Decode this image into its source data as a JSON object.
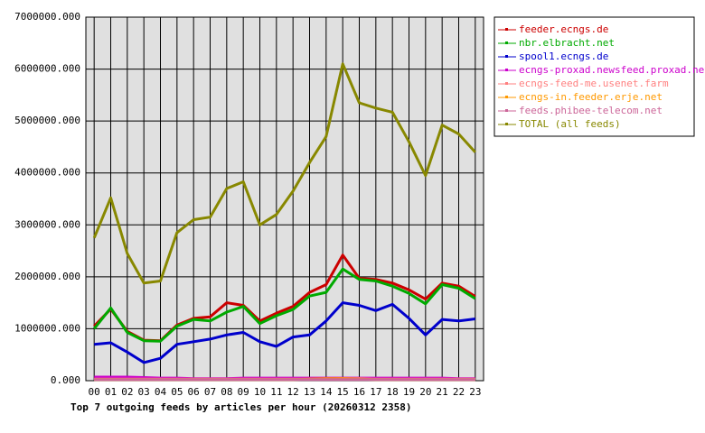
{
  "chart_data": {
    "type": "line",
    "caption": "Top 7 outgoing feeds by articles per hour (20260312 2358)",
    "categories": [
      "00",
      "01",
      "02",
      "03",
      "04",
      "05",
      "06",
      "07",
      "08",
      "09",
      "10",
      "11",
      "12",
      "13",
      "14",
      "15",
      "16",
      "17",
      "18",
      "19",
      "20",
      "21",
      "22",
      "23"
    ],
    "ylim": [
      0,
      7000000
    ],
    "yticks": [
      {
        "value": 0,
        "label": "0.000"
      },
      {
        "value": 1000000,
        "label": "1000000.000"
      },
      {
        "value": 2000000,
        "label": "2000000.000"
      },
      {
        "value": 3000000,
        "label": "3000000.000"
      },
      {
        "value": 4000000,
        "label": "4000000.000"
      },
      {
        "value": 5000000,
        "label": "5000000.000"
      },
      {
        "value": 6000000,
        "label": "6000000.000"
      },
      {
        "value": 7000000,
        "label": "7000000.000"
      }
    ],
    "grid": true,
    "series": [
      {
        "name": "feeder.ecngs.de",
        "color": "#cc0000",
        "values": [
          1050000,
          1380000,
          950000,
          780000,
          770000,
          1070000,
          1200000,
          1230000,
          1500000,
          1450000,
          1150000,
          1300000,
          1430000,
          1700000,
          1850000,
          2420000,
          1970000,
          1950000,
          1880000,
          1750000,
          1570000,
          1880000,
          1820000,
          1620000
        ]
      },
      {
        "name": "nbr.elbracht.net",
        "color": "#00aa00",
        "values": [
          1000000,
          1400000,
          930000,
          770000,
          760000,
          1050000,
          1180000,
          1150000,
          1320000,
          1430000,
          1100000,
          1250000,
          1370000,
          1630000,
          1700000,
          2150000,
          1950000,
          1920000,
          1820000,
          1680000,
          1480000,
          1850000,
          1780000,
          1580000
        ]
      },
      {
        "name": "spool1.ecngs.de",
        "color": "#0000cc",
        "values": [
          700000,
          730000,
          550000,
          350000,
          430000,
          700000,
          750000,
          800000,
          880000,
          930000,
          750000,
          660000,
          840000,
          880000,
          1150000,
          1500000,
          1450000,
          1350000,
          1470000,
          1200000,
          880000,
          1180000,
          1150000,
          1190000
        ]
      },
      {
        "name": "ecngs-proxad.newsfeed.proxad.net",
        "color": "#cc00cc",
        "values": [
          70000,
          70000,
          70000,
          60000,
          50000,
          50000,
          40000,
          40000,
          40000,
          50000,
          50000,
          50000,
          50000,
          50000,
          50000,
          50000,
          50000,
          50000,
          50000,
          50000,
          50000,
          50000,
          40000,
          40000
        ]
      },
      {
        "name": "ecngs-feed-me.usenet.farm",
        "color": "#ff8080",
        "values": [
          30000,
          30000,
          30000,
          30000,
          30000,
          30000,
          30000,
          30000,
          30000,
          30000,
          30000,
          30000,
          30000,
          30000,
          30000,
          40000,
          40000,
          30000,
          30000,
          30000,
          30000,
          30000,
          30000,
          30000
        ]
      },
      {
        "name": "ecngs-in.feeder.erje.net",
        "color": "#ff9900",
        "values": [
          20000,
          20000,
          20000,
          20000,
          20000,
          20000,
          20000,
          20000,
          20000,
          20000,
          20000,
          20000,
          20000,
          30000,
          40000,
          40000,
          30000,
          20000,
          20000,
          20000,
          20000,
          20000,
          20000,
          20000
        ]
      },
      {
        "name": "feeds.phibee-telecom.net",
        "color": "#cc6699",
        "values": [
          20000,
          20000,
          20000,
          20000,
          20000,
          20000,
          20000,
          20000,
          20000,
          20000,
          20000,
          20000,
          20000,
          20000,
          20000,
          20000,
          20000,
          20000,
          20000,
          20000,
          20000,
          20000,
          20000,
          20000
        ]
      },
      {
        "name": "TOTAL (all feeds)",
        "color": "#888800",
        "values": [
          2750000,
          3520000,
          2450000,
          1880000,
          1920000,
          2850000,
          3100000,
          3150000,
          3700000,
          3830000,
          3000000,
          3200000,
          3650000,
          4200000,
          4700000,
          6100000,
          5350000,
          5250000,
          5170000,
          4600000,
          3950000,
          4920000,
          4750000,
          4400000
        ]
      }
    ]
  }
}
